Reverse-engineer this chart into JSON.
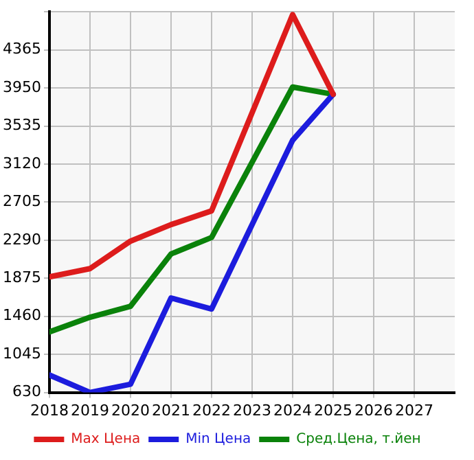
{
  "chart_data": {
    "type": "line",
    "x": [
      2018,
      2019,
      2020,
      2021,
      2022,
      2023,
      2024,
      2025
    ],
    "series": [
      {
        "name": "Max Цена",
        "color": "#dd1c1c",
        "values": [
          1890,
          1980,
          2280,
          2460,
          2610,
          null,
          4750,
          3880
        ]
      },
      {
        "name": "Min Цена",
        "color": "#1c1cdd",
        "values": [
          820,
          630,
          720,
          1660,
          1540,
          null,
          3380,
          3880
        ]
      },
      {
        "name": "Сред.Цена, т.йен",
        "color": "#0a820a",
        "values": [
          1290,
          1450,
          1570,
          2140,
          2320,
          null,
          3960,
          3880
        ]
      }
    ],
    "xlim": [
      2018,
      2028
    ],
    "xticks": [
      2018,
      2019,
      2020,
      2021,
      2022,
      2023,
      2024,
      2025,
      2026,
      2027
    ],
    "ylim": [
      630,
      4780
    ],
    "yticks": [
      630,
      1045,
      1460,
      1875,
      2290,
      2705,
      3120,
      3535,
      3950,
      4365,
      {
        "value": 4780,
        "label": null
      }
    ],
    "grid": true,
    "legend": "bottom",
    "marker": "none",
    "line_style": "solid"
  }
}
